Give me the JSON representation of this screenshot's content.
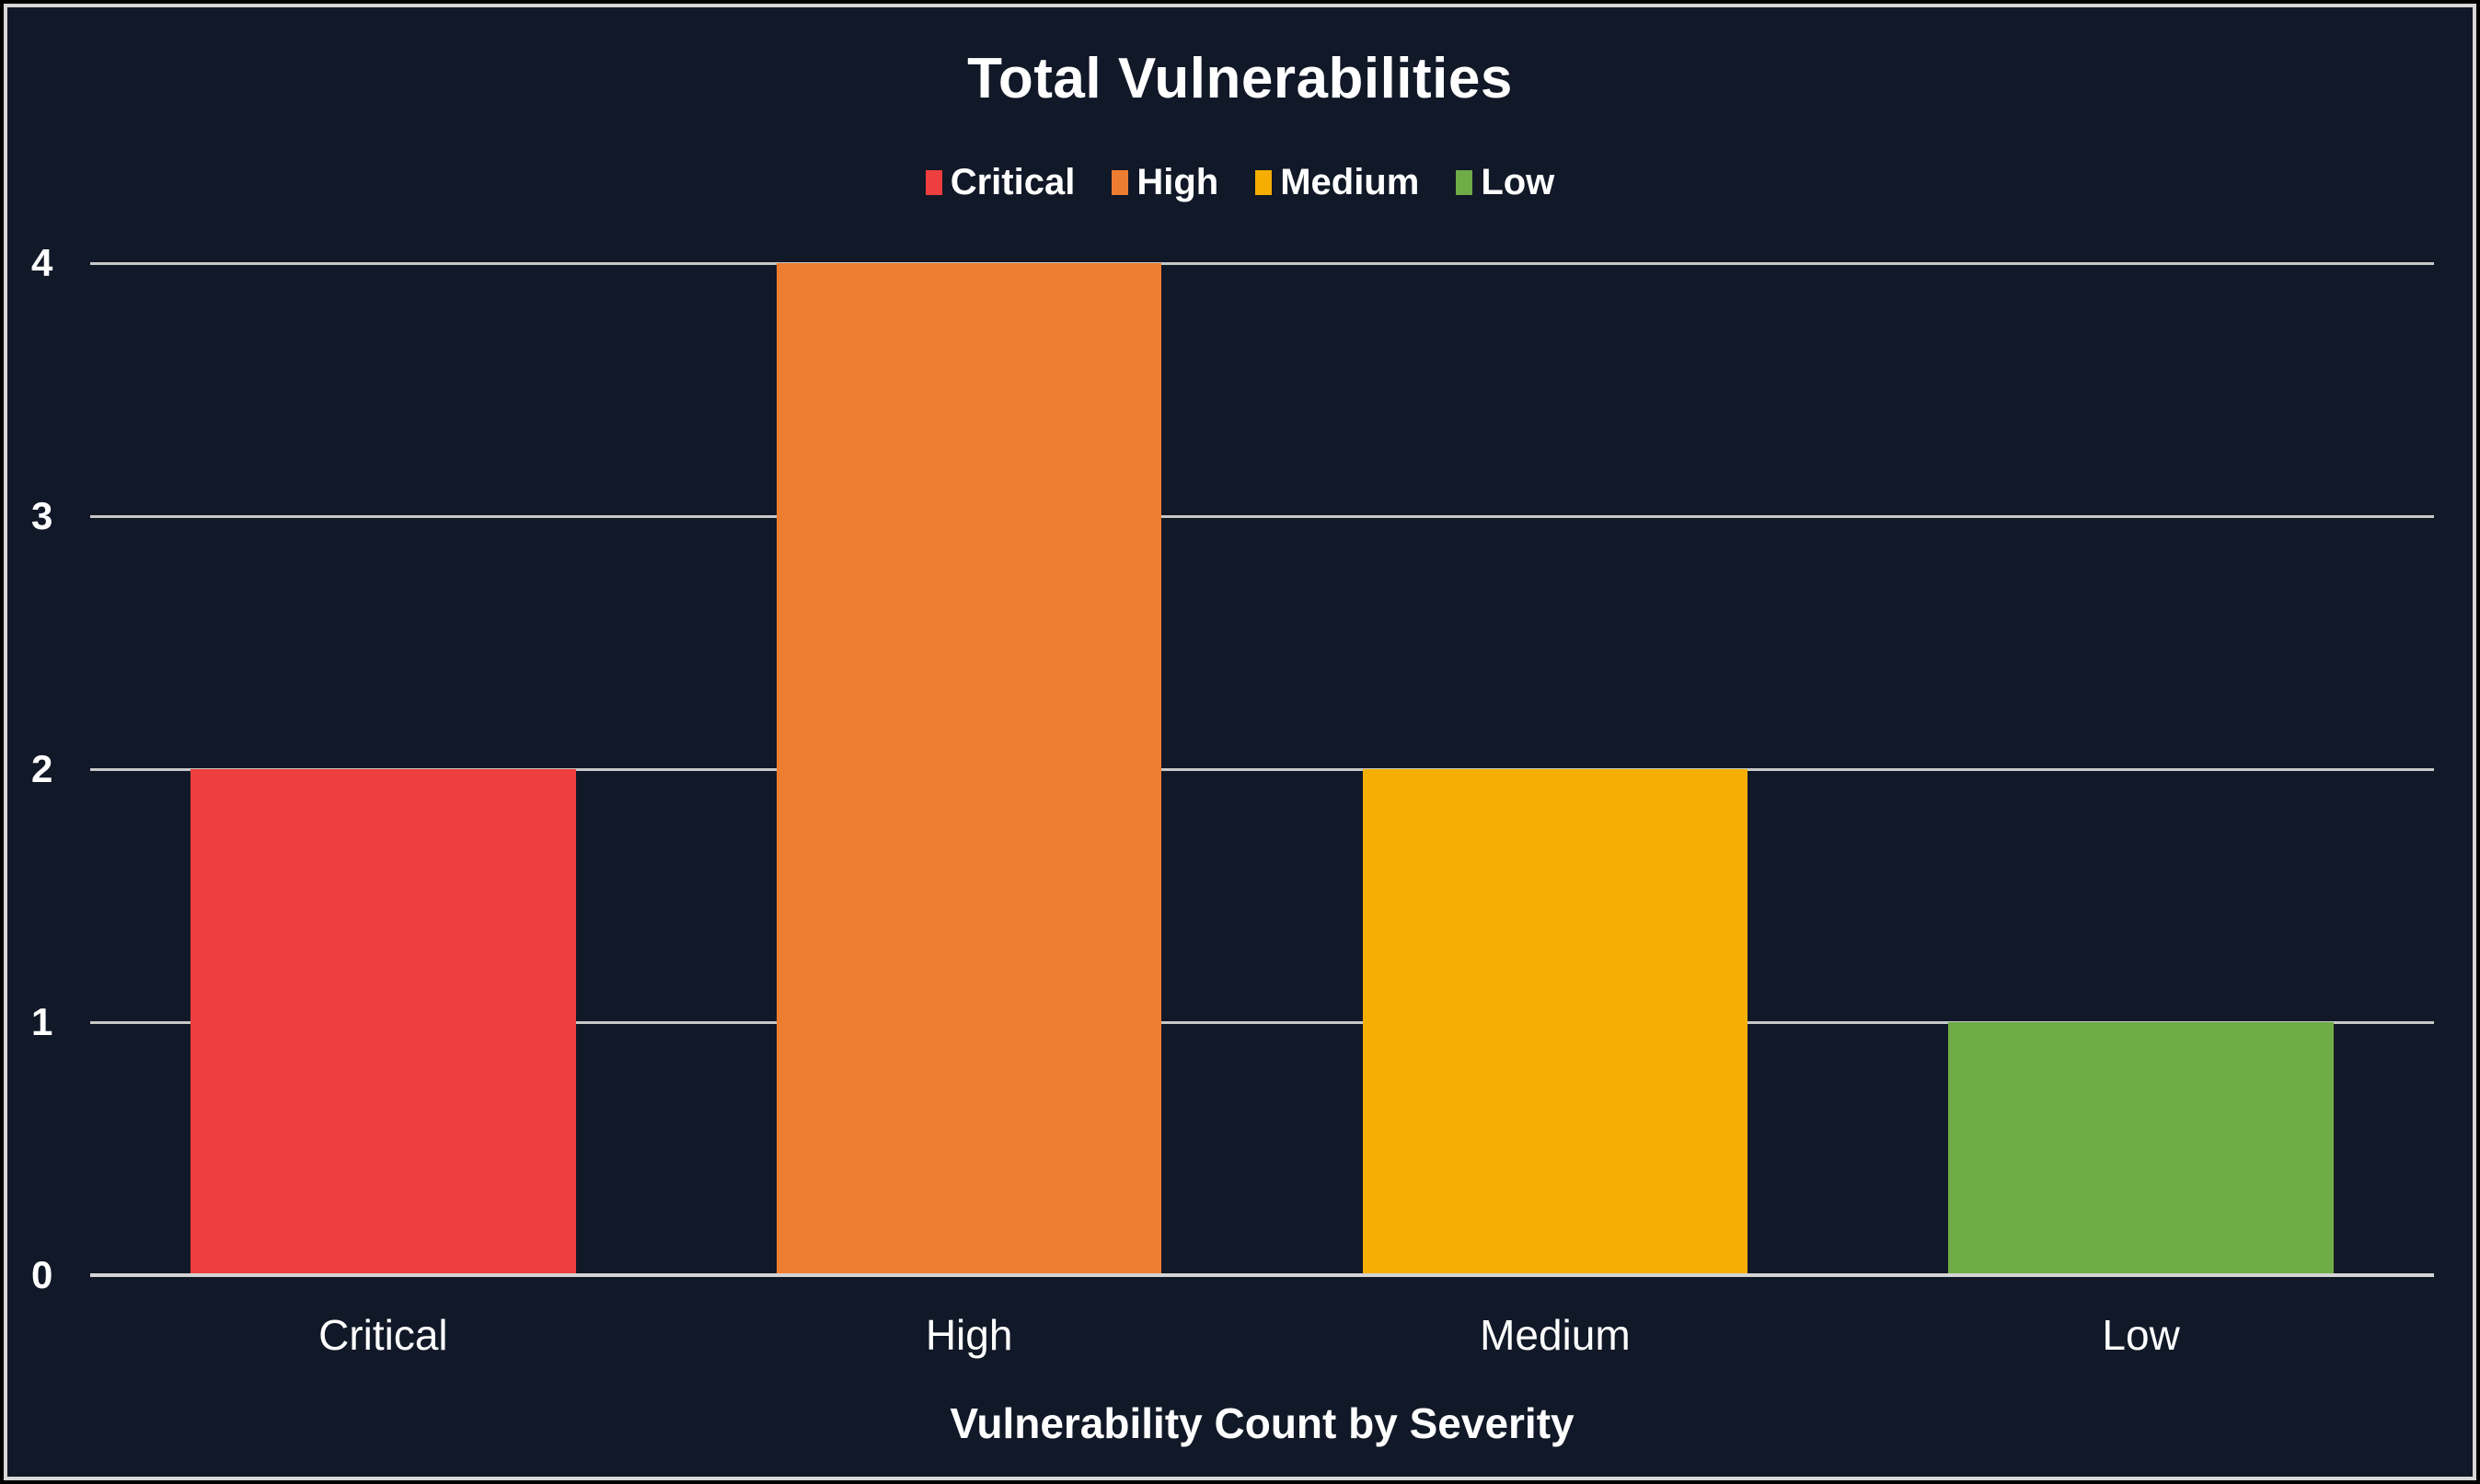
{
  "chart_data": {
    "type": "bar",
    "title": "Total Vulnerabilities",
    "xlabel": "Vulnerability Count by Severity",
    "ylabel": "",
    "categories": [
      "Critical",
      "High",
      "Medium",
      "Low"
    ],
    "values": [
      2,
      4,
      2,
      1
    ],
    "colors": [
      "#ef3e3e",
      "#ed7d31",
      "#f5ae01",
      "#6fab47"
    ],
    "legend": [
      "Critical",
      "High",
      "Medium",
      "Low"
    ],
    "legend_position": "top",
    "ylim": [
      0,
      4
    ],
    "ytick_step": 1,
    "yticks": [
      0,
      1,
      2,
      3,
      4
    ],
    "grid": true,
    "background_color": "#111827",
    "grid_color": "#c8c8c8",
    "text_color": "#ffffff",
    "border_color": "#d7d7d7",
    "bar_width_fraction": 0.657
  }
}
